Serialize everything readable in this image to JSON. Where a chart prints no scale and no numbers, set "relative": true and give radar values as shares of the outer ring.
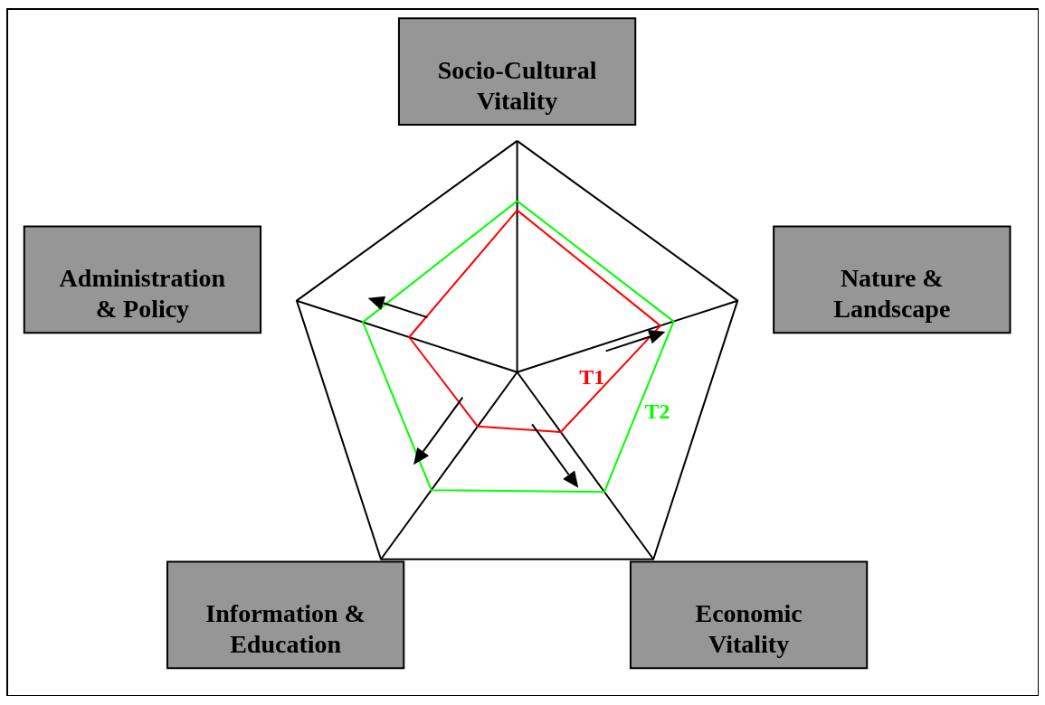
{
  "chart_data": {
    "type": "radar",
    "relative": true,
    "categories": [
      "Socio-Cultural Vitality",
      "Nature & Landscape",
      "Economic Vitality",
      "Information & Education",
      "Administration & Policy"
    ],
    "series": [
      {
        "name": "T1",
        "color": "#ff0000",
        "values": [
          0.7,
          0.65,
          0.32,
          0.29,
          0.49
        ]
      },
      {
        "name": "T2",
        "color": "#00ff00",
        "values": [
          0.74,
          0.71,
          0.64,
          0.63,
          0.7
        ]
      }
    ]
  }
}
